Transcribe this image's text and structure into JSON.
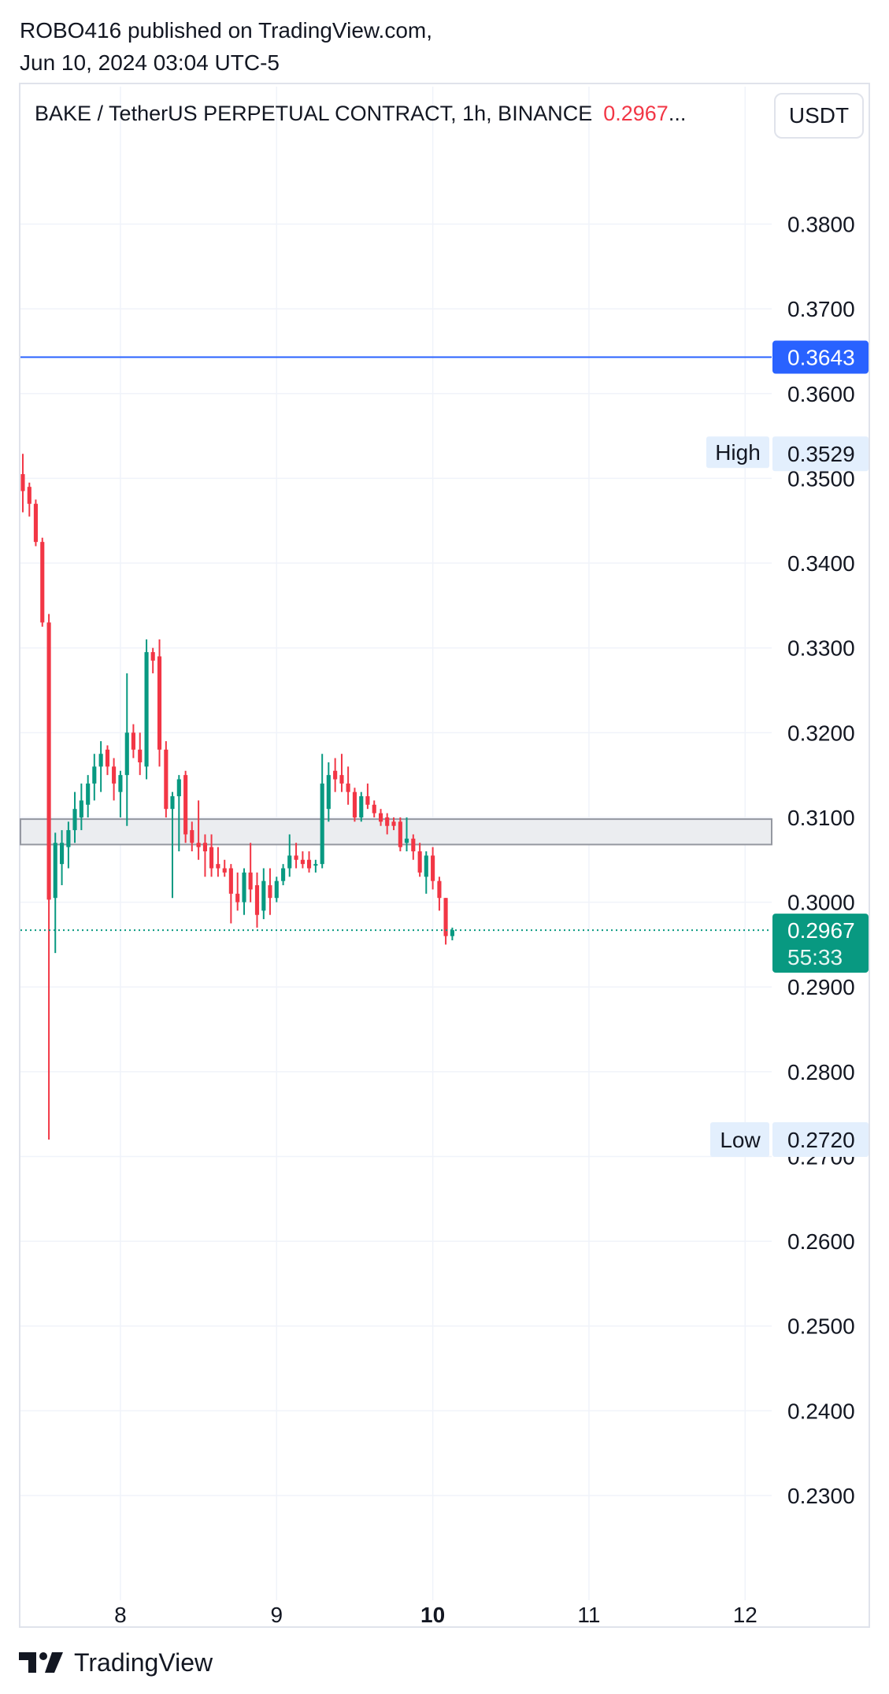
{
  "publisher": {
    "line1": "ROBO416 published on TradingView.com,",
    "line2": "Jun 10, 2024 03:04 UTC-5"
  },
  "header": {
    "symbol": "BAKE / TetherUS PERPETUAL CONTRACT, 1h, BINANCE",
    "last_price": "0.2967",
    "ellipsis": "...",
    "currency_button": "USDT"
  },
  "footer": {
    "brand": "TradingView",
    "logo_icon": "tradingview-logo-icon"
  },
  "colors": {
    "up": "#089981",
    "down": "#f23645",
    "grid": "#f0f3fa",
    "blue_line": "#2962ff",
    "zone_fill": "#ebedf0",
    "zone_border": "#9598a1",
    "hl_label_bg": "#e3effd"
  },
  "chart_data": {
    "type": "candlestick",
    "title": "BAKE / TetherUS PERPETUAL CONTRACT, 1h, BINANCE",
    "interval": "1h",
    "grid": true,
    "y_axis": {
      "side": "right",
      "ticks": [
        "0.3800",
        "0.3700",
        "0.3600",
        "0.3500",
        "0.3400",
        "0.3300",
        "0.3200",
        "0.3100",
        "0.3000",
        "0.2900",
        "0.2800",
        "0.2700",
        "0.2600",
        "0.2500",
        "0.2400",
        "0.2300"
      ],
      "range": [
        0.2195,
        0.3925
      ]
    },
    "x_axis": {
      "ticks": [
        {
          "label": "8",
          "day": 8,
          "bold": false
        },
        {
          "label": "9",
          "day": 9,
          "bold": false
        },
        {
          "label": "10",
          "day": 10,
          "bold": true
        },
        {
          "label": "11",
          "day": 11,
          "bold": false
        },
        {
          "label": "12",
          "day": 12,
          "bold": false
        }
      ],
      "range_days": [
        7.36,
        12.17
      ]
    },
    "horizontal_line": {
      "price": 0.3643,
      "label": "0.3643"
    },
    "zone": {
      "top": 0.3098,
      "bottom": 0.3068
    },
    "high": {
      "label": "High",
      "price": 0.3529,
      "value": "0.3529"
    },
    "low": {
      "label": "Low",
      "price": 0.272,
      "value": "0.2720"
    },
    "last": {
      "price": 0.2967,
      "value": "0.2967",
      "countdown": "55:33"
    },
    "candles": [
      {
        "t": 7.375,
        "o": 0.3505,
        "h": 0.3529,
        "l": 0.346,
        "c": 0.3485
      },
      {
        "t": 7.417,
        "o": 0.349,
        "h": 0.3495,
        "l": 0.3455,
        "c": 0.347
      },
      {
        "t": 7.458,
        "o": 0.347,
        "h": 0.3475,
        "l": 0.342,
        "c": 0.3425
      },
      {
        "t": 7.5,
        "o": 0.3425,
        "h": 0.343,
        "l": 0.3325,
        "c": 0.333
      },
      {
        "t": 7.542,
        "o": 0.333,
        "h": 0.334,
        "l": 0.272,
        "c": 0.3003
      },
      {
        "t": 7.583,
        "o": 0.3005,
        "h": 0.3082,
        "l": 0.294,
        "c": 0.307
      },
      {
        "t": 7.625,
        "o": 0.3045,
        "h": 0.3085,
        "l": 0.302,
        "c": 0.307
      },
      {
        "t": 7.667,
        "o": 0.3065,
        "h": 0.3095,
        "l": 0.304,
        "c": 0.3085
      },
      {
        "t": 7.708,
        "o": 0.3085,
        "h": 0.313,
        "l": 0.307,
        "c": 0.311
      },
      {
        "t": 7.75,
        "o": 0.31,
        "h": 0.314,
        "l": 0.3085,
        "c": 0.312
      },
      {
        "t": 7.792,
        "o": 0.3115,
        "h": 0.315,
        "l": 0.31,
        "c": 0.314
      },
      {
        "t": 7.833,
        "o": 0.314,
        "h": 0.3175,
        "l": 0.312,
        "c": 0.316
      },
      {
        "t": 7.875,
        "o": 0.316,
        "h": 0.319,
        "l": 0.313,
        "c": 0.3175
      },
      {
        "t": 7.917,
        "o": 0.318,
        "h": 0.3185,
        "l": 0.315,
        "c": 0.316
      },
      {
        "t": 7.958,
        "o": 0.316,
        "h": 0.317,
        "l": 0.312,
        "c": 0.314
      },
      {
        "t": 8.0,
        "o": 0.313,
        "h": 0.3155,
        "l": 0.31,
        "c": 0.315
      },
      {
        "t": 8.042,
        "o": 0.315,
        "h": 0.327,
        "l": 0.309,
        "c": 0.32
      },
      {
        "t": 8.083,
        "o": 0.32,
        "h": 0.321,
        "l": 0.317,
        "c": 0.318
      },
      {
        "t": 8.125,
        "o": 0.318,
        "h": 0.32,
        "l": 0.315,
        "c": 0.3165
      },
      {
        "t": 8.167,
        "o": 0.316,
        "h": 0.331,
        "l": 0.3145,
        "c": 0.3295
      },
      {
        "t": 8.208,
        "o": 0.3295,
        "h": 0.33,
        "l": 0.327,
        "c": 0.3285
      },
      {
        "t": 8.25,
        "o": 0.329,
        "h": 0.331,
        "l": 0.316,
        "c": 0.318
      },
      {
        "t": 8.292,
        "o": 0.318,
        "h": 0.319,
        "l": 0.31,
        "c": 0.311
      },
      {
        "t": 8.333,
        "o": 0.311,
        "h": 0.313,
        "l": 0.3005,
        "c": 0.3125
      },
      {
        "t": 8.375,
        "o": 0.3125,
        "h": 0.315,
        "l": 0.306,
        "c": 0.3145
      },
      {
        "t": 8.417,
        "o": 0.315,
        "h": 0.3155,
        "l": 0.307,
        "c": 0.308
      },
      {
        "t": 8.458,
        "o": 0.3085,
        "h": 0.3095,
        "l": 0.306,
        "c": 0.307
      },
      {
        "t": 8.5,
        "o": 0.307,
        "h": 0.312,
        "l": 0.305,
        "c": 0.3065
      },
      {
        "t": 8.542,
        "o": 0.307,
        "h": 0.308,
        "l": 0.303,
        "c": 0.306
      },
      {
        "t": 8.583,
        "o": 0.3065,
        "h": 0.308,
        "l": 0.303,
        "c": 0.304
      },
      {
        "t": 8.625,
        "o": 0.3045,
        "h": 0.3065,
        "l": 0.303,
        "c": 0.304
      },
      {
        "t": 8.667,
        "o": 0.304,
        "h": 0.305,
        "l": 0.303,
        "c": 0.3035
      },
      {
        "t": 8.708,
        "o": 0.304,
        "h": 0.3045,
        "l": 0.2975,
        "c": 0.301
      },
      {
        "t": 8.75,
        "o": 0.301,
        "h": 0.3035,
        "l": 0.299,
        "c": 0.3
      },
      {
        "t": 8.792,
        "o": 0.3,
        "h": 0.304,
        "l": 0.2985,
        "c": 0.3035
      },
      {
        "t": 8.833,
        "o": 0.3035,
        "h": 0.307,
        "l": 0.3,
        "c": 0.3015
      },
      {
        "t": 8.875,
        "o": 0.302,
        "h": 0.3035,
        "l": 0.297,
        "c": 0.2985
      },
      {
        "t": 8.917,
        "o": 0.299,
        "h": 0.304,
        "l": 0.298,
        "c": 0.3025
      },
      {
        "t": 8.958,
        "o": 0.302,
        "h": 0.304,
        "l": 0.2985,
        "c": 0.3005
      },
      {
        "t": 9.0,
        "o": 0.3005,
        "h": 0.303,
        "l": 0.3,
        "c": 0.3025
      },
      {
        "t": 9.042,
        "o": 0.3025,
        "h": 0.3045,
        "l": 0.302,
        "c": 0.304
      },
      {
        "t": 9.083,
        "o": 0.304,
        "h": 0.308,
        "l": 0.303,
        "c": 0.3055
      },
      {
        "t": 9.125,
        "o": 0.3055,
        "h": 0.307,
        "l": 0.304,
        "c": 0.305
      },
      {
        "t": 9.167,
        "o": 0.305,
        "h": 0.306,
        "l": 0.304,
        "c": 0.3045
      },
      {
        "t": 9.208,
        "o": 0.305,
        "h": 0.306,
        "l": 0.3035,
        "c": 0.304
      },
      {
        "t": 9.25,
        "o": 0.3045,
        "h": 0.305,
        "l": 0.3035,
        "c": 0.3045
      },
      {
        "t": 9.292,
        "o": 0.3045,
        "h": 0.3175,
        "l": 0.304,
        "c": 0.314
      },
      {
        "t": 9.333,
        "o": 0.311,
        "h": 0.3165,
        "l": 0.3095,
        "c": 0.315
      },
      {
        "t": 9.375,
        "o": 0.3155,
        "h": 0.317,
        "l": 0.313,
        "c": 0.3145
      },
      {
        "t": 9.417,
        "o": 0.315,
        "h": 0.3175,
        "l": 0.313,
        "c": 0.314
      },
      {
        "t": 9.458,
        "o": 0.314,
        "h": 0.316,
        "l": 0.3115,
        "c": 0.313
      },
      {
        "t": 9.5,
        "o": 0.313,
        "h": 0.3135,
        "l": 0.3095,
        "c": 0.31
      },
      {
        "t": 9.542,
        "o": 0.31,
        "h": 0.313,
        "l": 0.3095,
        "c": 0.3125
      },
      {
        "t": 9.583,
        "o": 0.3125,
        "h": 0.314,
        "l": 0.311,
        "c": 0.3115
      },
      {
        "t": 9.625,
        "o": 0.3115,
        "h": 0.312,
        "l": 0.31,
        "c": 0.3105
      },
      {
        "t": 9.667,
        "o": 0.3105,
        "h": 0.311,
        "l": 0.309,
        "c": 0.3095
      },
      {
        "t": 9.708,
        "o": 0.31,
        "h": 0.3105,
        "l": 0.308,
        "c": 0.309
      },
      {
        "t": 9.75,
        "o": 0.3095,
        "h": 0.31,
        "l": 0.3085,
        "c": 0.309
      },
      {
        "t": 9.792,
        "o": 0.3095,
        "h": 0.31,
        "l": 0.306,
        "c": 0.3065
      },
      {
        "t": 9.833,
        "o": 0.307,
        "h": 0.31,
        "l": 0.306,
        "c": 0.3075
      },
      {
        "t": 9.875,
        "o": 0.3075,
        "h": 0.308,
        "l": 0.305,
        "c": 0.306
      },
      {
        "t": 9.917,
        "o": 0.306,
        "h": 0.307,
        "l": 0.303,
        "c": 0.3035
      },
      {
        "t": 9.958,
        "o": 0.303,
        "h": 0.306,
        "l": 0.301,
        "c": 0.3055
      },
      {
        "t": 10.0,
        "o": 0.3055,
        "h": 0.3065,
        "l": 0.3015,
        "c": 0.3025
      },
      {
        "t": 10.042,
        "o": 0.3025,
        "h": 0.303,
        "l": 0.299,
        "c": 0.3005
      },
      {
        "t": 10.083,
        "o": 0.3005,
        "h": 0.3005,
        "l": 0.295,
        "c": 0.296
      },
      {
        "t": 10.125,
        "o": 0.296,
        "h": 0.297,
        "l": 0.2955,
        "c": 0.2967
      }
    ]
  }
}
